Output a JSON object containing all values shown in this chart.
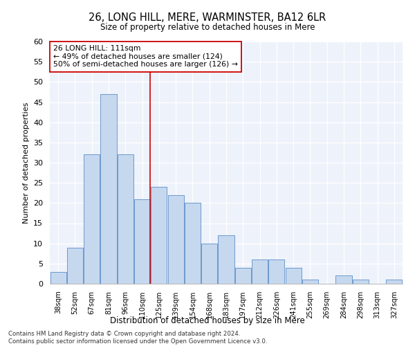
{
  "title": "26, LONG HILL, MERE, WARMINSTER, BA12 6LR",
  "subtitle": "Size of property relative to detached houses in Mere",
  "xlabel": "Distribution of detached houses by size in Mere",
  "ylabel": "Number of detached properties",
  "categories": [
    "38sqm",
    "52sqm",
    "67sqm",
    "81sqm",
    "96sqm",
    "110sqm",
    "125sqm",
    "139sqm",
    "154sqm",
    "168sqm",
    "183sqm",
    "197sqm",
    "212sqm",
    "226sqm",
    "241sqm",
    "255sqm",
    "269sqm",
    "284sqm",
    "298sqm",
    "313sqm",
    "327sqm"
  ],
  "values": [
    3,
    9,
    32,
    47,
    32,
    21,
    24,
    22,
    20,
    10,
    12,
    4,
    6,
    6,
    4,
    1,
    0,
    2,
    1,
    0,
    1
  ],
  "bar_color": "#c5d8ee",
  "bar_edge_color": "#5b8dc8",
  "background_color": "#eef2fb",
  "ylim": [
    0,
    60
  ],
  "yticks": [
    0,
    5,
    10,
    15,
    20,
    25,
    30,
    35,
    40,
    45,
    50,
    55,
    60
  ],
  "vline_x_index": 5,
  "vline_color": "#cc0000",
  "annotation_text": "26 LONG HILL: 111sqm\n← 49% of detached houses are smaller (124)\n50% of semi-detached houses are larger (126) →",
  "annotation_box_color": "#ffffff",
  "annotation_box_edge_color": "#cc0000",
  "footer_line1": "Contains HM Land Registry data © Crown copyright and database right 2024.",
  "footer_line2": "Contains public sector information licensed under the Open Government Licence v3.0."
}
